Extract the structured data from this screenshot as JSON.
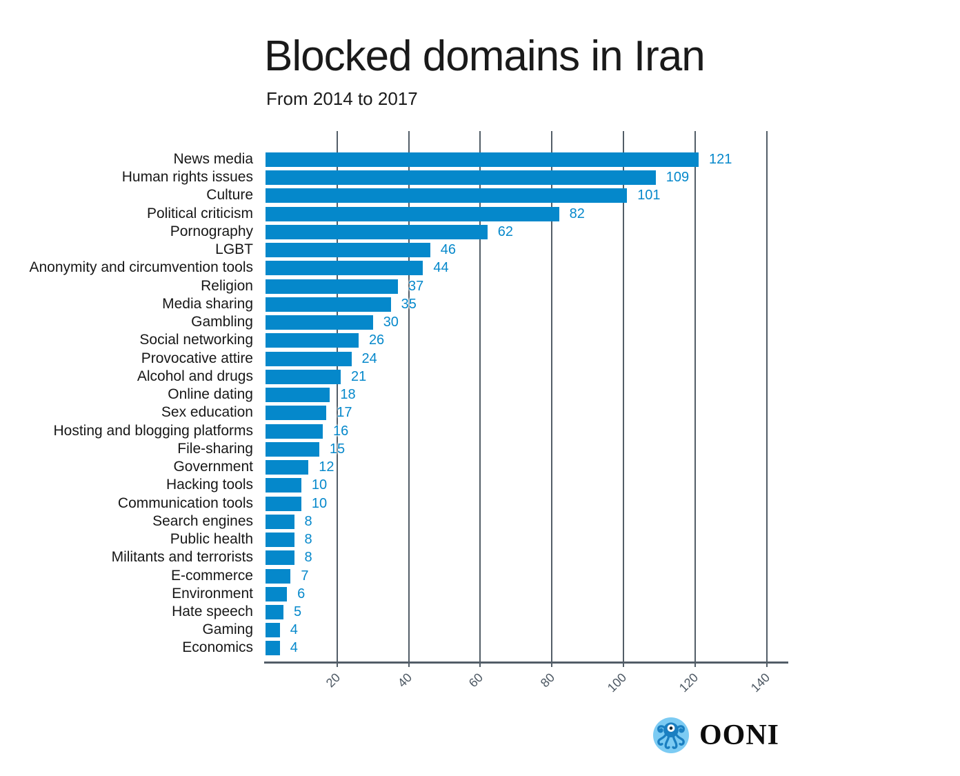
{
  "title": "Blocked domains in Iran",
  "subtitle": "From 2014 to 2017",
  "chart_data": {
    "type": "bar",
    "orientation": "horizontal",
    "title": "Blocked domains in Iran",
    "subtitle": "From 2014 to 2017",
    "xlabel": "",
    "ylabel": "",
    "categories": [
      "News media",
      "Human rights issues",
      "Culture",
      "Political criticism",
      "Pornography",
      "LGBT",
      "Anonymity and circumvention tools",
      "Religion",
      "Media sharing",
      "Gambling",
      "Social networking",
      "Provocative attire",
      "Alcohol and drugs",
      "Online dating",
      "Sex education",
      "Hosting and blogging platforms",
      "File-sharing",
      "Government",
      "Hacking tools",
      "Communication tools",
      "Search engines",
      "Public health",
      "Militants and terrorists",
      "E-commerce",
      "Environment",
      "Hate speech",
      "Gaming",
      "Economics"
    ],
    "values": [
      121,
      109,
      101,
      82,
      62,
      46,
      44,
      37,
      35,
      30,
      26,
      24,
      21,
      18,
      17,
      16,
      15,
      12,
      10,
      10,
      8,
      8,
      8,
      7,
      6,
      5,
      4,
      4
    ],
    "xticks": [
      20,
      40,
      60,
      80,
      100,
      120,
      140
    ],
    "xlim": [
      0,
      146
    ],
    "grid": true,
    "legend": "none",
    "bar_color": "#0588cb",
    "value_label_color": "#0588cb",
    "axis_color": "#525d67",
    "tick_label_color": "#4d5863",
    "category_label_color": "#171717"
  },
  "footer": {
    "logo_text": "OONI",
    "logo_icon": "octopus-icon",
    "logo_circle_color": "#7ccbf3",
    "octopus_color": "#1a7fc1"
  }
}
